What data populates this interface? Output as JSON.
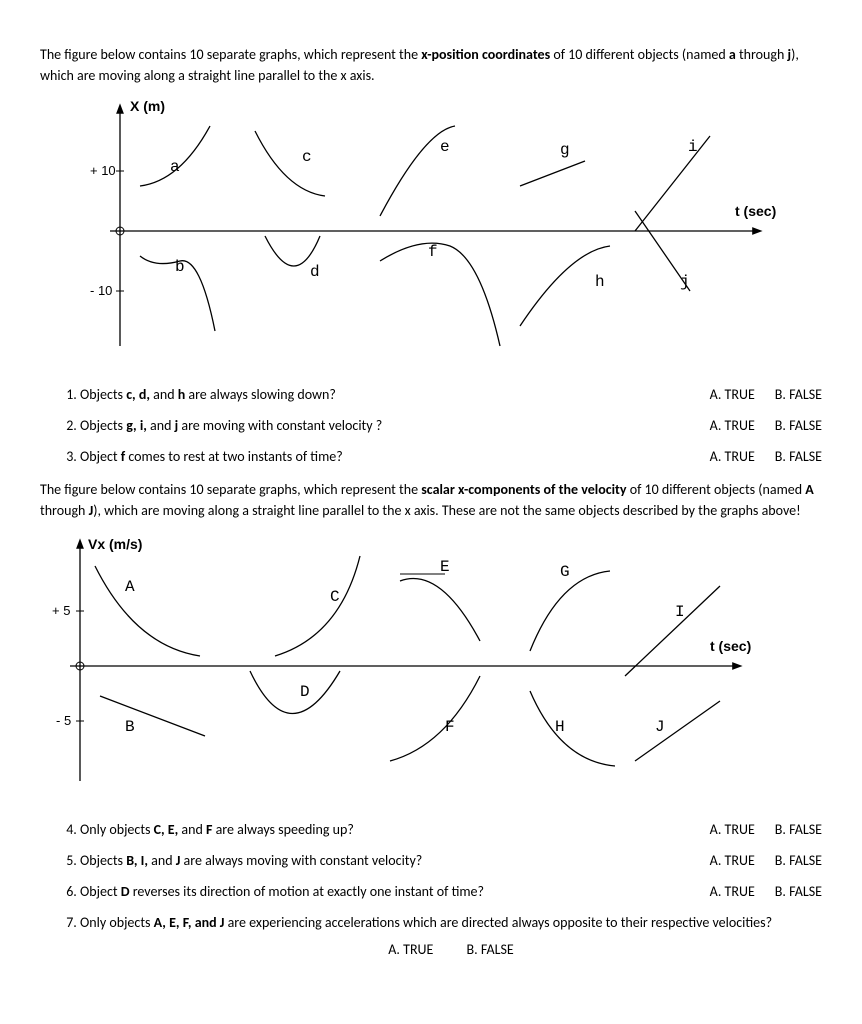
{
  "intro1_a": "The figure below contains 10 separate graphs, which represent the ",
  "intro1_b": "x-position coordinates",
  "intro1_c": " of 10 different objects  (named ",
  "intro1_d": "a",
  "intro1_e": " through ",
  "intro1_f": "j",
  "intro1_g": "), which are moving along a straight line parallel to the x axis.",
  "fig1": {
    "y_label": "X (m)",
    "x_label": "t (sec)",
    "y_tick_pos": "+ 10",
    "y_tick_neg": "- 10",
    "labels": {
      "a": "a",
      "b": "b",
      "c": "c",
      "d": "d",
      "e": "e",
      "f": "f",
      "g": "g",
      "h": "h",
      "i": "i",
      "j": "j"
    }
  },
  "q1": "Objects <b>c, d,</b> and <b>h</b> are always slowing down?",
  "q2": "Objects <b>g, i,</b> and <b>j</b> are moving with constant velocity ?",
  "q3": "Object <b>f</b> comes to rest at two instants of time?",
  "intro2_a": "The figure below contains 10 separate graphs, which represent the ",
  "intro2_b": "scalar x-components of the velocity",
  "intro2_c": " of 10 different objects (named ",
  "intro2_d": "A",
  "intro2_e": " through ",
  "intro2_f": "J",
  "intro2_g": "), which are moving along a straight line parallel to the x axis. These are not the same objects described by the graphs above!",
  "fig2": {
    "y_label": "Vx (m/s)",
    "x_label": "t (sec)",
    "y_tick_pos": "+ 5",
    "y_tick_neg": "- 5",
    "labels": {
      "A": "A",
      "B": "B",
      "C": "C",
      "D": "D",
      "E": "E",
      "F": "F",
      "G": "G",
      "H": "H",
      "I": "I",
      "J": "J"
    }
  },
  "q4": "Only objects <b>C, E,</b> and <b>F</b> are always speeding up?",
  "q5": "Objects <b>B, I,</b> and <b>J</b> are always moving with constant velocity?",
  "q6": "Object <b>D</b> reverses its direction of motion at exactly one instant of time?",
  "q7": "Only objects <b>A, E, F, and J</b> are experiencing accelerations which are directed always opposite to their respective velocities?",
  "true": "A. TRUE",
  "false": "B. FALSE"
}
